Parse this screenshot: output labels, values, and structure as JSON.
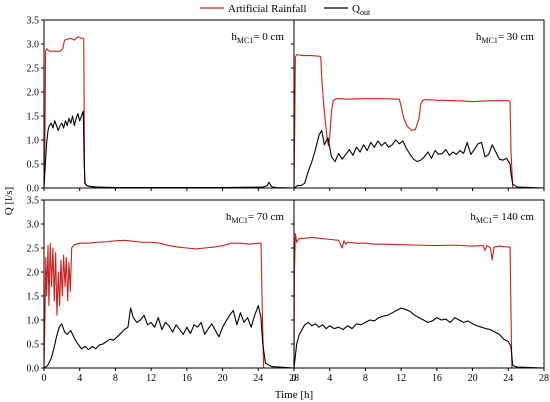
{
  "legend": [
    {
      "label": "Artificial Rainfall",
      "color": "#cc1f1f"
    },
    {
      "label": "Q",
      "sub": "out",
      "color": "#000000"
    }
  ],
  "xlabel": "Time [h]",
  "ylabel": "Q [l/s]",
  "chart_data": [
    {
      "type": "line",
      "title_main": "h",
      "title_sub": "MC1",
      "title_rest": "= 0 cm",
      "xlim": [
        0,
        28
      ],
      "ylim": [
        0,
        3.5
      ],
      "xticks": [
        0,
        4,
        8,
        12,
        16,
        20,
        24,
        28
      ],
      "yticks": [
        0.0,
        0.5,
        1.0,
        1.5,
        2.0,
        2.5,
        3.0,
        3.5
      ],
      "show_xtick_labels": false,
      "show_ytick_labels": true,
      "series": [
        {
          "name": "Artificial Rainfall",
          "color": "#cc1f1f",
          "x": [
            0,
            0.1,
            0.18,
            0.3,
            0.6,
            1.0,
            1.4,
            1.8,
            2.1,
            2.3,
            2.6,
            3.0,
            3.4,
            3.8,
            4.2,
            4.45,
            4.5,
            4.55,
            4.8,
            5.5,
            7,
            10,
            28
          ],
          "y": [
            0,
            1.0,
            2.85,
            2.9,
            2.85,
            2.85,
            2.85,
            2.85,
            2.9,
            3.08,
            3.1,
            3.12,
            3.08,
            3.15,
            3.12,
            3.12,
            1.5,
            0.1,
            0.05,
            0.02,
            0.01,
            0,
            0
          ]
        },
        {
          "name": "Q",
          "color": "#000000",
          "x": [
            0,
            0.15,
            0.3,
            0.45,
            0.6,
            0.8,
            1.0,
            1.2,
            1.4,
            1.6,
            1.8,
            2.0,
            2.2,
            2.4,
            2.6,
            2.8,
            3.0,
            3.2,
            3.4,
            3.6,
            3.8,
            4.0,
            4.2,
            4.4,
            4.5,
            4.6,
            4.8,
            5.2,
            6,
            8,
            12,
            20,
            24.5,
            25,
            25.2,
            25.4,
            25.6,
            26,
            28
          ],
          "y": [
            0,
            0.5,
            0.95,
            1.2,
            1.3,
            1.35,
            1.25,
            1.4,
            1.3,
            1.2,
            1.3,
            1.35,
            1.25,
            1.4,
            1.3,
            1.45,
            1.35,
            1.5,
            1.3,
            1.45,
            1.55,
            1.4,
            1.5,
            1.6,
            0.5,
            0.1,
            0.05,
            0.03,
            0.02,
            0.01,
            0.01,
            0.01,
            0.02,
            0.05,
            0.12,
            0.05,
            0.02,
            0.01,
            0
          ]
        }
      ]
    },
    {
      "type": "line",
      "title_main": "h",
      "title_sub": "MC1",
      "title_rest": "= 30 cm",
      "xlim": [
        0,
        28
      ],
      "ylim": [
        0,
        3.5
      ],
      "xticks": [
        0,
        4,
        8,
        12,
        16,
        20,
        24,
        28
      ],
      "yticks": [
        0.0,
        0.5,
        1.0,
        1.5,
        2.0,
        2.5,
        3.0,
        3.5
      ],
      "show_xtick_labels": false,
      "show_ytick_labels": false,
      "series": [
        {
          "name": "Artificial Rainfall",
          "color": "#cc1f1f",
          "x": [
            0,
            0.08,
            0.15,
            0.3,
            1,
            2,
            3,
            3.1,
            3.3,
            3.5,
            3.7,
            3.85,
            4.0,
            4.2,
            4.4,
            4.6,
            4.8,
            5.2,
            6,
            8,
            10,
            11.8,
            12,
            12.3,
            12.7,
            13.2,
            13.6,
            14,
            14.2,
            14.4,
            14.6,
            15,
            16,
            18,
            20,
            22,
            24,
            24.2,
            24.3,
            24.5,
            28
          ],
          "y": [
            0,
            1.2,
            2.72,
            2.78,
            2.76,
            2.76,
            2.74,
            2.3,
            1.8,
            1.4,
            1.05,
            0.88,
            1.05,
            1.6,
            1.82,
            1.85,
            1.86,
            1.86,
            1.85,
            1.86,
            1.86,
            1.85,
            1.7,
            1.45,
            1.28,
            1.2,
            1.22,
            1.45,
            1.75,
            1.82,
            1.84,
            1.84,
            1.83,
            1.82,
            1.8,
            1.82,
            1.82,
            1.8,
            0.8,
            0,
            0
          ]
        },
        {
          "name": "Q",
          "color": "#000000",
          "x": [
            0,
            0.4,
            0.8,
            1.2,
            1.6,
            2.0,
            2.4,
            2.8,
            3.1,
            3.4,
            3.8,
            4.2,
            4.6,
            5.0,
            5.4,
            5.8,
            6.2,
            6.6,
            7.0,
            7.4,
            7.8,
            8.2,
            8.6,
            9.0,
            9.4,
            9.8,
            10.2,
            10.6,
            11.0,
            11.4,
            11.8,
            12.2,
            12.6,
            13.0,
            13.4,
            13.8,
            14.2,
            14.6,
            15.0,
            15.4,
            15.8,
            16.2,
            16.6,
            17.0,
            17.4,
            17.8,
            18.2,
            18.6,
            19.0,
            19.4,
            19.8,
            20.2,
            20.6,
            21.0,
            21.4,
            21.8,
            22.2,
            22.6,
            23.0,
            23.4,
            23.8,
            24.2,
            24.3,
            24.5,
            25,
            28
          ],
          "y": [
            0,
            0.05,
            0.05,
            0.1,
            0.35,
            0.55,
            0.8,
            1.1,
            1.2,
            0.9,
            1.05,
            0.65,
            0.55,
            0.72,
            0.6,
            0.7,
            0.8,
            0.68,
            0.85,
            0.75,
            0.9,
            0.78,
            0.95,
            0.85,
            0.98,
            0.88,
            0.95,
            0.85,
            0.9,
            1.0,
            0.92,
            0.98,
            0.82,
            0.7,
            0.6,
            0.55,
            0.58,
            0.65,
            0.75,
            0.62,
            0.78,
            0.7,
            0.72,
            0.8,
            0.68,
            0.75,
            0.7,
            0.78,
            0.72,
            0.95,
            0.7,
            0.8,
            0.92,
            0.95,
            0.65,
            0.7,
            0.9,
            0.75,
            0.6,
            0.58,
            0.62,
            0.5,
            0.3,
            0.08,
            0.02,
            0
          ]
        }
      ]
    },
    {
      "type": "line",
      "title_main": "h",
      "title_sub": "MC1",
      "title_rest": "= 70 cm",
      "xlim": [
        0,
        28
      ],
      "ylim": [
        0,
        3.5
      ],
      "xticks": [
        0,
        4,
        8,
        12,
        16,
        20,
        24,
        28
      ],
      "yticks": [
        0.0,
        0.5,
        1.0,
        1.5,
        2.0,
        2.5,
        3.0,
        3.5
      ],
      "show_xtick_labels": true,
      "show_ytick_labels": true,
      "series": [
        {
          "name": "Artificial Rainfall",
          "color": "#cc1f1f",
          "x": [
            0,
            0.1,
            0.2,
            0.3,
            0.45,
            0.55,
            0.7,
            0.85,
            1.0,
            1.15,
            1.3,
            1.45,
            1.6,
            1.75,
            1.9,
            2.05,
            2.2,
            2.35,
            2.5,
            2.65,
            2.8,
            2.95,
            3.1,
            3.3,
            3.6,
            4,
            5,
            6,
            7,
            8,
            9,
            10,
            11,
            12,
            13,
            14,
            15,
            16,
            17,
            18,
            19,
            20,
            21,
            22,
            23,
            24,
            24.3,
            24.45,
            24.6,
            28
          ],
          "y": [
            0,
            1.0,
            2.3,
            1.5,
            2.55,
            1.3,
            2.6,
            1.7,
            2.5,
            1.4,
            2.4,
            1.1,
            2.0,
            1.3,
            2.25,
            1.5,
            2.35,
            1.7,
            2.3,
            1.4,
            2.2,
            1.6,
            2.5,
            2.55,
            2.58,
            2.6,
            2.6,
            2.62,
            2.63,
            2.65,
            2.66,
            2.64,
            2.62,
            2.62,
            2.6,
            2.55,
            2.52,
            2.5,
            2.48,
            2.5,
            2.52,
            2.55,
            2.6,
            2.6,
            2.58,
            2.6,
            2.6,
            1.2,
            0,
            0
          ]
        },
        {
          "name": "Q",
          "color": "#000000",
          "x": [
            0,
            0.4,
            0.8,
            1.1,
            1.4,
            1.7,
            2.0,
            2.3,
            2.6,
            3.0,
            3.4,
            3.8,
            4.2,
            4.6,
            5.0,
            5.4,
            5.8,
            6.2,
            6.6,
            7.0,
            7.4,
            7.8,
            8.2,
            8.6,
            9.0,
            9.4,
            9.7,
            10.0,
            10.4,
            10.8,
            11.2,
            11.6,
            12.0,
            12.4,
            12.8,
            13.2,
            13.6,
            14.0,
            14.4,
            14.8,
            15.2,
            15.6,
            16.0,
            16.4,
            16.8,
            17.2,
            17.6,
            18.0,
            18.4,
            18.8,
            19.2,
            19.6,
            20.0,
            20.4,
            20.8,
            21.2,
            21.6,
            22.0,
            22.4,
            22.8,
            23.2,
            23.6,
            24.0,
            24.3,
            24.5,
            24.8,
            25.5,
            28
          ],
          "y": [
            0,
            0.05,
            0.2,
            0.4,
            0.65,
            0.85,
            0.92,
            0.75,
            0.7,
            0.78,
            0.62,
            0.5,
            0.4,
            0.45,
            0.38,
            0.45,
            0.4,
            0.48,
            0.5,
            0.55,
            0.6,
            0.58,
            0.65,
            0.72,
            0.8,
            0.85,
            1.25,
            1.05,
            0.95,
            1.0,
            1.1,
            0.9,
            0.95,
            0.85,
            1.05,
            0.8,
            0.95,
            0.88,
            0.75,
            0.9,
            0.8,
            0.7,
            0.85,
            0.72,
            0.9,
            0.85,
            0.95,
            0.7,
            0.82,
            0.92,
            0.78,
            0.65,
            0.85,
            0.98,
            1.1,
            1.2,
            0.9,
            1.15,
            0.95,
            1.05,
            0.85,
            1.1,
            1.3,
            1.05,
            0.5,
            0.1,
            0.03,
            0
          ]
        }
      ]
    },
    {
      "type": "line",
      "title_main": "h",
      "title_sub": "MC1",
      "title_rest": "= 140 cm",
      "xlim": [
        0,
        28
      ],
      "ylim": [
        0,
        3.5
      ],
      "xticks": [
        0,
        4,
        8,
        12,
        16,
        20,
        24,
        28
      ],
      "yticks": [
        0.0,
        0.5,
        1.0,
        1.5,
        2.0,
        2.5,
        3.0,
        3.5
      ],
      "show_xtick_labels": true,
      "show_ytick_labels": false,
      "series": [
        {
          "name": "Artificial Rainfall",
          "color": "#cc1f1f",
          "x": [
            0,
            0.05,
            0.15,
            0.3,
            0.6,
            1,
            2,
            3,
            4,
            5,
            5.4,
            5.6,
            5.8,
            6,
            7,
            8,
            9,
            10,
            12,
            14,
            16,
            18,
            20,
            21.2,
            21.4,
            21.6,
            22,
            22.2,
            22.4,
            23,
            24,
            24.2,
            24.3,
            24.4,
            28
          ],
          "y": [
            0,
            2.0,
            2.8,
            2.62,
            2.7,
            2.7,
            2.72,
            2.7,
            2.68,
            2.66,
            2.5,
            2.65,
            2.58,
            2.62,
            2.6,
            2.6,
            2.58,
            2.58,
            2.57,
            2.56,
            2.55,
            2.56,
            2.54,
            2.55,
            2.45,
            2.55,
            2.5,
            2.25,
            2.52,
            2.54,
            2.52,
            2.52,
            1.2,
            0,
            0
          ]
        },
        {
          "name": "Q",
          "color": "#000000",
          "x": [
            0,
            0.3,
            0.6,
            0.9,
            1.2,
            1.6,
            2.0,
            2.4,
            2.8,
            3.2,
            3.6,
            4.0,
            4.5,
            5.0,
            5.5,
            6.0,
            6.5,
            7.0,
            7.5,
            8.0,
            8.5,
            9.0,
            9.5,
            10.0,
            10.5,
            11.0,
            11.5,
            12.0,
            12.5,
            13.0,
            13.5,
            14.0,
            14.5,
            15.0,
            15.5,
            16.0,
            16.5,
            17.0,
            17.5,
            18.0,
            18.5,
            19.0,
            19.5,
            20.0,
            20.5,
            21.0,
            21.5,
            22.0,
            22.5,
            23.0,
            23.5,
            24.0,
            24.3,
            24.5,
            25,
            28
          ],
          "y": [
            0,
            0.5,
            0.7,
            0.8,
            0.9,
            0.95,
            0.88,
            0.92,
            0.85,
            0.9,
            0.82,
            0.88,
            0.82,
            0.85,
            0.8,
            0.88,
            0.82,
            0.92,
            0.9,
            0.95,
            1.0,
            0.98,
            1.05,
            1.08,
            1.1,
            1.15,
            1.2,
            1.25,
            1.22,
            1.18,
            1.1,
            1.05,
            1.0,
            0.95,
            0.98,
            1.05,
            1.0,
            1.02,
            0.95,
            1.05,
            1.0,
            0.95,
            0.98,
            0.92,
            0.88,
            0.85,
            0.82,
            0.8,
            0.75,
            0.7,
            0.6,
            0.55,
            0.45,
            0.05,
            0.02,
            0
          ]
        }
      ]
    }
  ]
}
